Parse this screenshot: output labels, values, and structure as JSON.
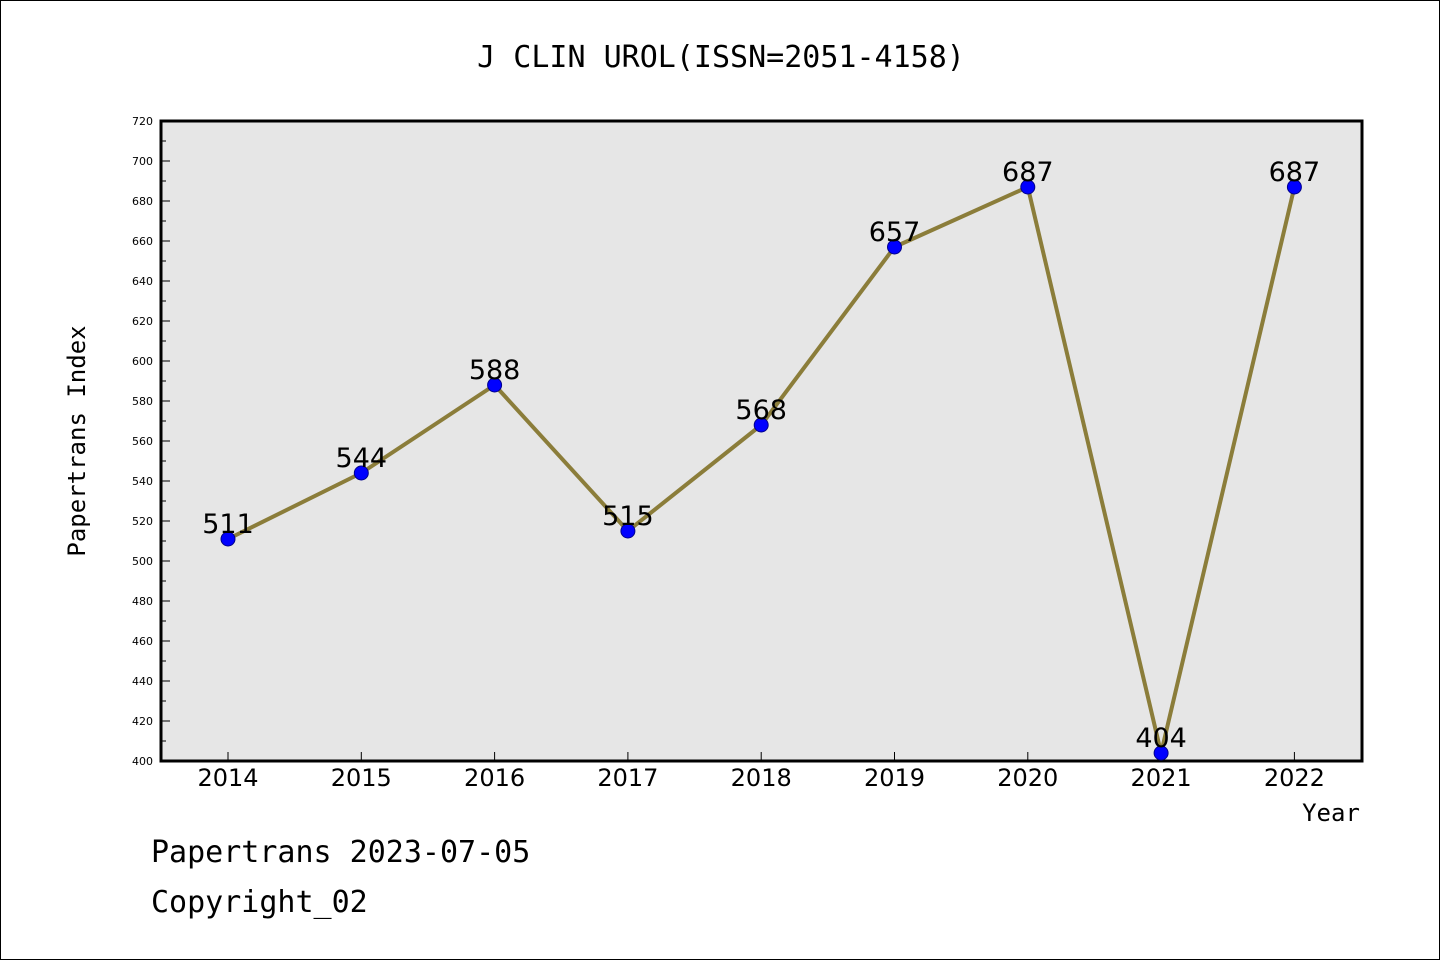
{
  "chart_data": {
    "type": "line",
    "title": "J CLIN UROL(ISSN=2051-4158)",
    "xlabel": "Year",
    "ylabel": "Papertrans Index",
    "categories": [
      "2014",
      "2015",
      "2016",
      "2017",
      "2018",
      "2019",
      "2020",
      "2021",
      "2022"
    ],
    "series": [
      {
        "values": [
          511,
          544,
          588,
          515,
          568,
          657,
          687,
          404,
          687
        ]
      }
    ],
    "data_labels": [
      "511",
      "544",
      "588",
      "515",
      "568",
      "657",
      "687",
      "404",
      "687"
    ],
    "ylim": [
      400,
      720
    ],
    "yticks": [
      400,
      420,
      440,
      460,
      480,
      500,
      520,
      540,
      560,
      580,
      600,
      620,
      640,
      660,
      680,
      700,
      720
    ],
    "grid": false,
    "legend": "none",
    "colors": {
      "line": "#8b7d3a",
      "marker": "#0000ff",
      "plot_bg": "#e6e6e6"
    }
  },
  "footer": {
    "line1": "Papertrans 2023-07-05",
    "line2": "Copyright_02"
  }
}
